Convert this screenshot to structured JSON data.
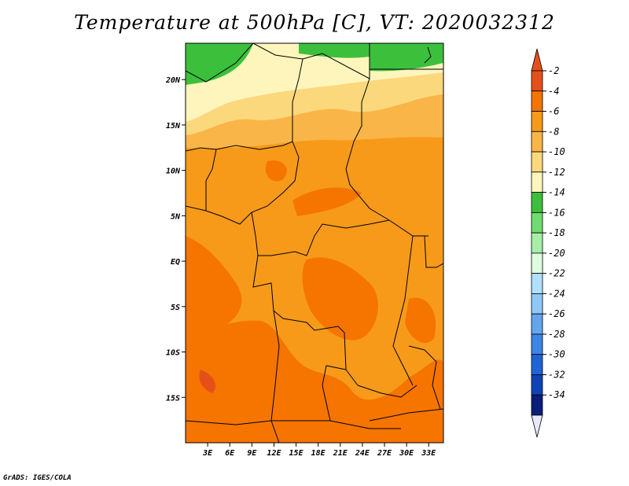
{
  "title": "Temperature at 500hPa [C], VT: 2020032312",
  "footer": "GrADS: IGES/COLA",
  "map": {
    "projection": "latlon",
    "lon_range": [
      0,
      35
    ],
    "lat_range": [
      -20,
      24
    ],
    "lat_ticks": [
      {
        "value": 20,
        "label": "20N"
      },
      {
        "value": 15,
        "label": "15N"
      },
      {
        "value": 10,
        "label": "10N"
      },
      {
        "value": 5,
        "label": "5N"
      },
      {
        "value": 0,
        "label": "EQ"
      },
      {
        "value": -5,
        "label": "5S"
      },
      {
        "value": -10,
        "label": "10S"
      },
      {
        "value": -15,
        "label": "15S"
      }
    ],
    "lon_ticks": [
      {
        "value": 3,
        "label": "3E"
      },
      {
        "value": 6,
        "label": "6E"
      },
      {
        "value": 9,
        "label": "9E"
      },
      {
        "value": 12,
        "label": "12E"
      },
      {
        "value": 15,
        "label": "15E"
      },
      {
        "value": 18,
        "label": "18E"
      },
      {
        "value": 21,
        "label": "21E"
      },
      {
        "value": 24,
        "label": "24E"
      },
      {
        "value": 27,
        "label": "27E"
      },
      {
        "value": 30,
        "label": "30E"
      },
      {
        "value": 33,
        "label": "33E"
      }
    ]
  },
  "colorbar": {
    "labels": [
      "-2",
      "-4",
      "-6",
      "-8",
      "-10",
      "-12",
      "-14",
      "-16",
      "-18",
      "-20",
      "-22",
      "-24",
      "-26",
      "-28",
      "-30",
      "-32",
      "-34"
    ],
    "colors": [
      "#e5501a",
      "#f57500",
      "#f79a1a",
      "#f9b548",
      "#fcd87c",
      "#fdf5bc",
      "#3cc03c",
      "#6fdc6f",
      "#a6efa6",
      "#e0fce0",
      "#b0e0ff",
      "#8fc8f8",
      "#63a6ef",
      "#3d85e6",
      "#1f64d6",
      "#0e42b8",
      "#0a1f7a"
    ],
    "top_color": "#e5501a",
    "bottom_color": "#e8e8ff"
  }
}
